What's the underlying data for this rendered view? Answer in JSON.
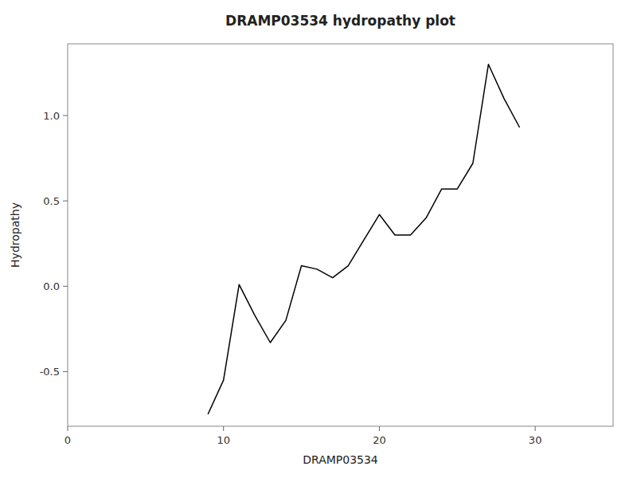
{
  "chart_data": {
    "type": "line",
    "title": "DRAMP03534 hydropathy plot",
    "xlabel": "DRAMP03534",
    "ylabel": "Hydropathy",
    "x": [
      9,
      10,
      11,
      12,
      13,
      14,
      15,
      16,
      17,
      18,
      19,
      20,
      21,
      22,
      23,
      24,
      25,
      26,
      27,
      28,
      29
    ],
    "values": [
      -0.75,
      -0.55,
      0.01,
      -0.17,
      -0.33,
      -0.2,
      0.12,
      0.1,
      0.05,
      0.12,
      0.27,
      0.42,
      0.3,
      0.3,
      0.4,
      0.57,
      0.57,
      0.72,
      1.3,
      1.1,
      0.93
    ],
    "color": "#000000",
    "xlim": [
      0,
      35
    ],
    "ylim": [
      -0.82,
      1.42
    ],
    "xticks": [
      0,
      10,
      20,
      30
    ],
    "yticks": [
      -0.5,
      {
        "value": 0.0,
        "label": "0.0"
      },
      0.5,
      {
        "value": 1.0,
        "label": "1.0"
      }
    ],
    "grid": false
  }
}
